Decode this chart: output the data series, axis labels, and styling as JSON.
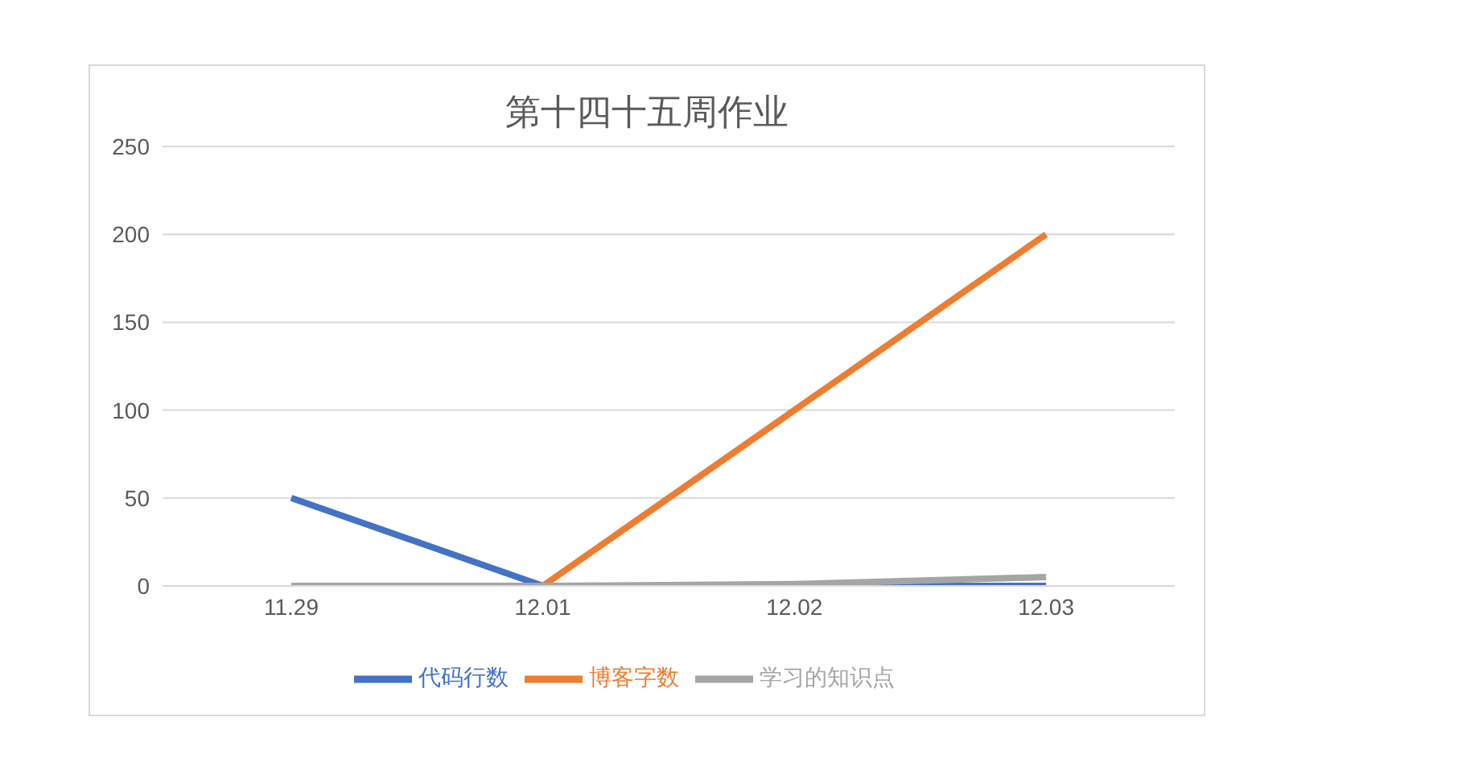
{
  "chart_data": {
    "type": "line",
    "title": "第十四十五周作业",
    "categories": [
      "11.29",
      "12.01",
      "12.02",
      "12.03"
    ],
    "series": [
      {
        "name": "代码行数",
        "color": "#4472c4",
        "values": [
          50,
          0,
          0,
          0
        ]
      },
      {
        "name": "博客字数",
        "color": "#ed7d31",
        "values": [
          null,
          0,
          100,
          200
        ]
      },
      {
        "name": "学习的知识点",
        "color": "#a5a5a5",
        "values": [
          0,
          0,
          1,
          5
        ]
      }
    ],
    "ylim": [
      0,
      250
    ],
    "yticks": [
      0,
      50,
      100,
      150,
      200,
      250
    ],
    "grid": "y",
    "legend": "bottom",
    "marker": "none",
    "line_style": "solid"
  }
}
